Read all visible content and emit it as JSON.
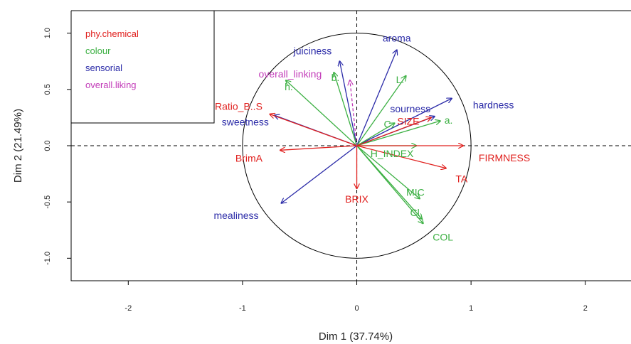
{
  "chart_data": {
    "type": "scatter",
    "subtype": "pca-correlation-circle",
    "xlabel": "Dim 1 (37.74%)",
    "ylabel": "Dim 2 (21.49%)",
    "xlim": [
      -2.5,
      2.4
    ],
    "ylim": [
      -1.2,
      1.2
    ],
    "x_ticks": [
      "-2",
      "-1",
      "0",
      "1",
      "2"
    ],
    "y_ticks": [
      "-1.0",
      "-0.5",
      "0.0",
      "0.5",
      "1.0"
    ],
    "x_tick_values": [
      -2,
      -1,
      0,
      1,
      2
    ],
    "y_tick_values": [
      -1.0,
      -0.5,
      0.0,
      0.5,
      1.0
    ],
    "legend": {
      "placement": "top-left",
      "entries": [
        {
          "group": "phy.chemical",
          "label": "phy.chemical",
          "color": "#e0201e"
        },
        {
          "group": "colour",
          "label": "colour",
          "color": "#3cb043"
        },
        {
          "group": "sensorial",
          "label": "sensorial",
          "color": "#2b2ba8"
        },
        {
          "group": "overall.liking",
          "label": "overall.liking",
          "color": "#c23bb8"
        }
      ]
    },
    "variables": [
      {
        "name": "aroma",
        "group": "sensorial",
        "x": 0.35,
        "y": 0.85
      },
      {
        "name": "juiciness",
        "group": "sensorial",
        "x": -0.15,
        "y": 0.75
      },
      {
        "name": "hardness",
        "group": "sensorial",
        "x": 0.83,
        "y": 0.42
      },
      {
        "name": "sourness",
        "group": "sensorial",
        "x": 0.68,
        "y": 0.26
      },
      {
        "name": "sweetness",
        "group": "sensorial",
        "x": -0.72,
        "y": 0.27
      },
      {
        "name": "mealiness",
        "group": "sensorial",
        "x": -0.66,
        "y": -0.51
      },
      {
        "name": "L.",
        "group": "colour",
        "x": 0.43,
        "y": 0.62
      },
      {
        "name": "b.",
        "group": "colour",
        "x": -0.2,
        "y": 0.65
      },
      {
        "name": "h.",
        "group": "colour",
        "x": -0.62,
        "y": 0.58
      },
      {
        "name": "C.",
        "group": "colour",
        "x": 0.33,
        "y": 0.2
      },
      {
        "name": "a.",
        "group": "colour",
        "x": 0.73,
        "y": 0.22
      },
      {
        "name": "H_INDEX",
        "group": "colour",
        "x": 0.52,
        "y": 0.0
      },
      {
        "name": "MIC",
        "group": "colour",
        "x": 0.55,
        "y": -0.47
      },
      {
        "name": "Cl",
        "group": "colour",
        "x": 0.57,
        "y": -0.65
      },
      {
        "name": "COL",
        "group": "colour",
        "x": 0.58,
        "y": -0.69
      },
      {
        "name": "Ratio_B..S",
        "group": "phy.chemical",
        "x": -0.76,
        "y": 0.28
      },
      {
        "name": "BrimA",
        "group": "phy.chemical",
        "x": -0.67,
        "y": -0.04
      },
      {
        "name": "BRIX",
        "group": "phy.chemical",
        "x": 0.0,
        "y": -0.38
      },
      {
        "name": "SIZE",
        "group": "phy.chemical",
        "x": 0.65,
        "y": 0.25
      },
      {
        "name": "FIRMNESS",
        "group": "phy.chemical",
        "x": 0.93,
        "y": 0.0
      },
      {
        "name": "TA",
        "group": "phy.chemical",
        "x": 0.78,
        "y": -0.2
      },
      {
        "name": "overall_linking",
        "group": "overall.liking",
        "x": -0.06,
        "y": 0.58
      }
    ]
  }
}
